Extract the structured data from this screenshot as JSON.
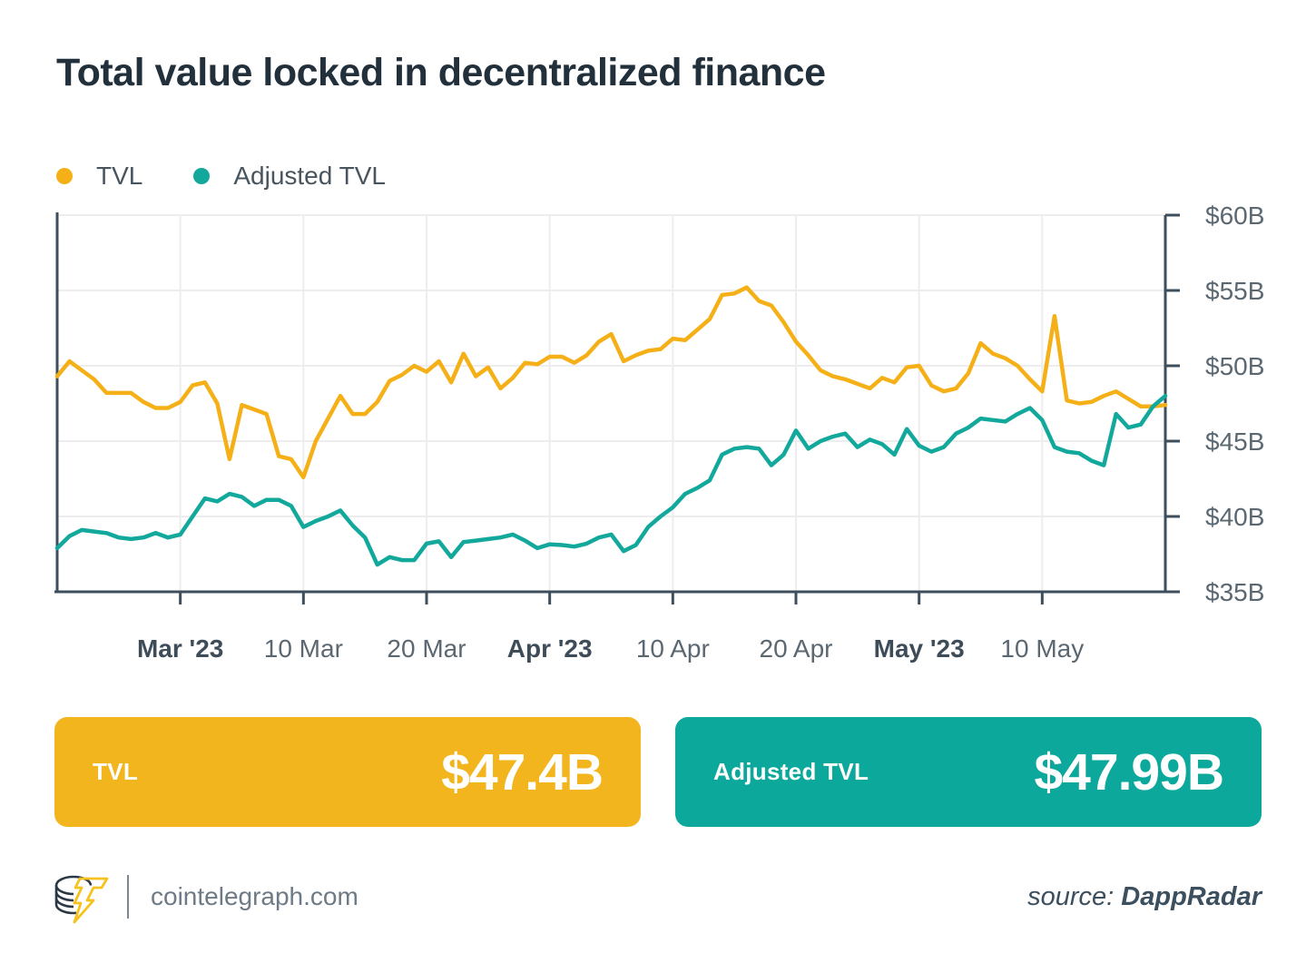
{
  "title": "Total value locked in decentralized finance",
  "legend": {
    "items": [
      {
        "label": "TVL",
        "color": "#f5b018"
      },
      {
        "label": "Adjusted TVL",
        "color": "#12a89b"
      }
    ]
  },
  "colors": {
    "tvl_yellow": "#f5b018",
    "adjusted_teal": "#12a89b",
    "badge_yellow": "#f2b51d",
    "badge_teal": "#0ca89b",
    "axis_line": "#3e4e5c",
    "grid_line": "#ededef",
    "tick_label": "#5b6872",
    "tick_label_bold": "#3e4c59"
  },
  "chart_data": {
    "type": "line",
    "title": "Total value locked in decentralized finance",
    "xlabel": "",
    "ylabel": "",
    "ylim": [
      35,
      60
    ],
    "grid": true,
    "legend_position": "top-left",
    "y_ticks": [
      {
        "label": "$60B",
        "value": 60
      },
      {
        "label": "$55B",
        "value": 55
      },
      {
        "label": "$50B",
        "value": 50
      },
      {
        "label": "$45B",
        "value": 45
      },
      {
        "label": "$40B",
        "value": 40
      },
      {
        "label": "$35B",
        "value": 35
      }
    ],
    "x_ticks": [
      {
        "label": "Mar '23",
        "index": 10,
        "bold": true
      },
      {
        "label": "10 Mar",
        "index": 20,
        "bold": false
      },
      {
        "label": "20 Mar",
        "index": 30,
        "bold": false
      },
      {
        "label": "Apr '23",
        "index": 40,
        "bold": true
      },
      {
        "label": "10 Apr",
        "index": 50,
        "bold": false
      },
      {
        "label": "20 Apr",
        "index": 60,
        "bold": false
      },
      {
        "label": "May '23",
        "index": 70,
        "bold": true
      },
      {
        "label": "10 May",
        "index": 80,
        "bold": false
      }
    ],
    "series": [
      {
        "name": "TVL",
        "key": "tvl",
        "color": "#f5b018",
        "values": [
          49.3,
          50.3,
          49.7,
          49.1,
          48.2,
          48.2,
          48.2,
          47.6,
          47.2,
          47.2,
          47.6,
          48.7,
          48.9,
          47.5,
          43.8,
          47.4,
          47.1,
          46.8,
          44.0,
          43.8,
          42.6,
          45.0,
          46.5,
          48.0,
          46.8,
          46.8,
          47.6,
          49.0,
          49.4,
          50.0,
          49.6,
          50.3,
          48.9,
          50.8,
          49.3,
          49.9,
          48.5,
          49.2,
          50.2,
          50.1,
          50.6,
          50.6,
          50.2,
          50.7,
          51.6,
          52.1,
          50.3,
          50.7,
          51.0,
          51.1,
          51.8,
          51.7,
          52.4,
          53.1,
          54.7,
          54.8,
          55.2,
          54.3,
          54.0,
          52.9,
          51.6,
          50.7,
          49.7,
          49.3,
          49.1,
          48.8,
          48.5,
          49.2,
          48.9,
          49.9,
          50.0,
          48.7,
          48.3,
          48.5,
          49.5,
          51.5,
          50.8,
          50.5,
          50.0,
          49.1,
          48.3,
          53.3,
          47.7,
          47.5,
          47.6,
          48.0,
          48.3,
          47.8,
          47.3,
          47.3,
          47.4
        ]
      },
      {
        "name": "Adjusted TVL",
        "key": "adjusted-tvl",
        "color": "#12a89b",
        "values": [
          37.9,
          38.7,
          39.1,
          39.0,
          38.9,
          38.6,
          38.5,
          38.6,
          38.9,
          38.6,
          38.8,
          40.0,
          41.2,
          41.0,
          41.5,
          41.3,
          40.7,
          41.1,
          41.1,
          40.7,
          39.3,
          39.7,
          40.0,
          40.4,
          39.4,
          38.6,
          36.8,
          37.3,
          37.1,
          37.1,
          38.2,
          38.35,
          37.3,
          38.3,
          38.4,
          38.5,
          38.6,
          38.8,
          38.4,
          37.9,
          38.15,
          38.1,
          38.0,
          38.2,
          38.6,
          38.8,
          37.7,
          38.1,
          39.3,
          40.0,
          40.6,
          41.5,
          41.9,
          42.4,
          44.1,
          44.5,
          44.6,
          44.5,
          43.4,
          44.1,
          45.7,
          44.5,
          45.0,
          45.3,
          45.5,
          44.6,
          45.1,
          44.8,
          44.1,
          45.8,
          44.7,
          44.3,
          44.6,
          45.5,
          45.9,
          46.5,
          46.4,
          46.3,
          46.8,
          47.2,
          46.4,
          44.6,
          44.3,
          44.2,
          43.7,
          43.4,
          46.8,
          45.9,
          46.1,
          47.3,
          48.0
        ]
      }
    ]
  },
  "badges": [
    {
      "label": "TVL",
      "value": "$47.4B",
      "color": "#f2b51d"
    },
    {
      "label": "Adjusted TVL",
      "value": "$47.99B",
      "color": "#0ca89b"
    }
  ],
  "footer": {
    "site": "cointelegraph.com",
    "source_prefix": "source: ",
    "source_name": "DappRadar"
  }
}
